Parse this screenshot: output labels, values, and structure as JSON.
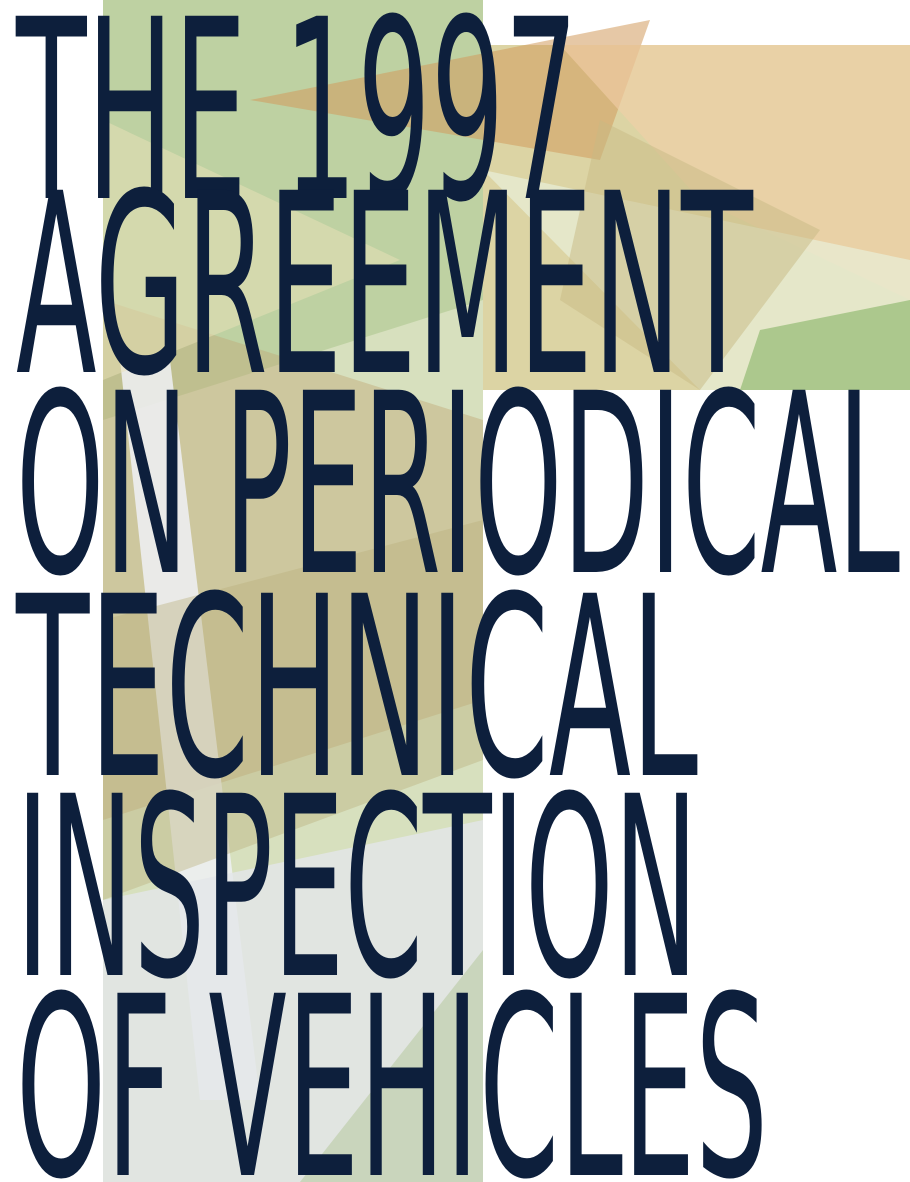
{
  "cover": {
    "title_lines": [
      "THE 1997",
      "AGREEMENT",
      "ON PERIODICAL",
      "TECHNICAL",
      "INSPECTION",
      "OF VEHICLES"
    ]
  }
}
